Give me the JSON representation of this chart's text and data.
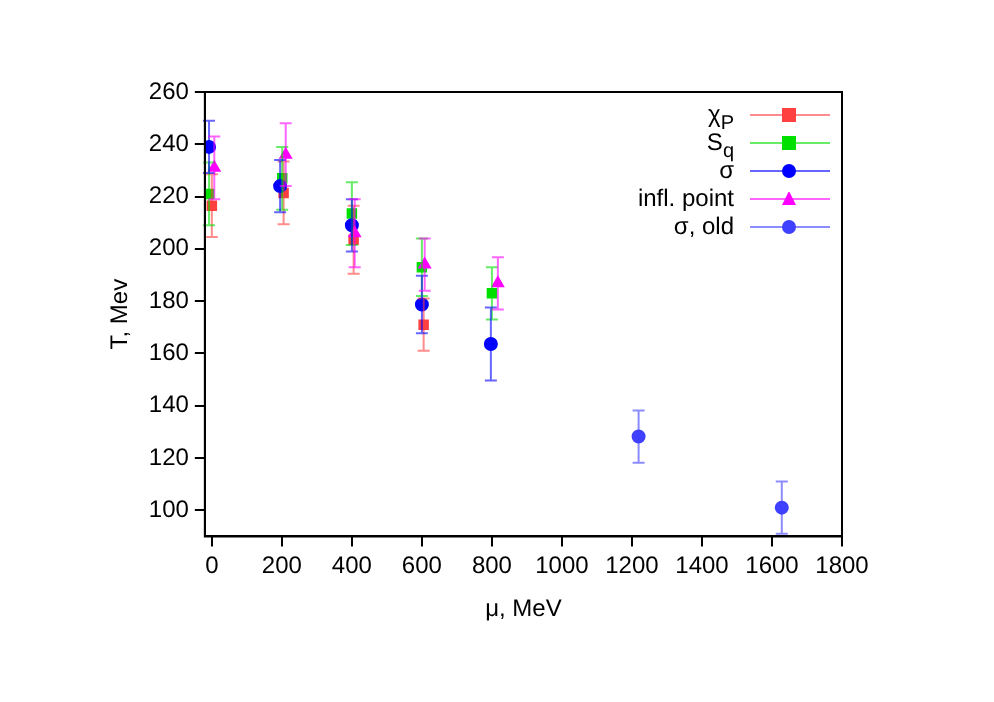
{
  "chart_data": {
    "type": "scatter",
    "xlabel": "μ, MeV",
    "ylabel": "T, Mev",
    "xlim": [
      -20,
      1800
    ],
    "xticks": [
      0,
      200,
      400,
      600,
      800,
      1000,
      1200,
      1400,
      1600,
      1800
    ],
    "ylim": [
      90,
      260
    ],
    "yticks": [
      100,
      120,
      140,
      160,
      180,
      200,
      220,
      240,
      260
    ],
    "grid": false,
    "legend": "top right",
    "series": [
      {
        "name": "χ$_{P}$",
        "color": "#ff4040",
        "marker": "square",
        "x": [
          0,
          205,
          405,
          605
        ],
        "values": [
          216.5,
          221.4,
          203.5,
          171
        ],
        "errors": [
          12,
          12,
          13,
          10
        ]
      },
      {
        "name": "S$_{q}$",
        "color": "#00e000",
        "marker": "square",
        "x": [
          -8,
          201,
          400,
          600,
          800
        ],
        "values": [
          221,
          227,
          213.5,
          193,
          183
        ],
        "errors": [
          12,
          12,
          12,
          11,
          10
        ]
      },
      {
        "name": "σ",
        "color": "#0000ff",
        "marker": "circle",
        "x": [
          -8,
          195,
          400,
          600,
          797
        ],
        "values": [
          239,
          224,
          209,
          178.7,
          163.6
        ],
        "errors": [
          10,
          10,
          10,
          11,
          14
        ]
      },
      {
        "name": "infl. point",
        "color": "#ff00ff",
        "marker": "triangle",
        "x": [
          7,
          211,
          408,
          608,
          817
        ],
        "values": [
          231,
          236,
          206,
          194,
          186.8
        ],
        "errors": [
          12,
          12,
          13,
          10,
          10
        ]
      },
      {
        "name": "σ, old",
        "color": "#4040ff",
        "marker": "circle",
        "x": [
          1219,
          1628
        ],
        "values": [
          128.2,
          101
        ],
        "errors": [
          10,
          10
        ]
      }
    ]
  }
}
